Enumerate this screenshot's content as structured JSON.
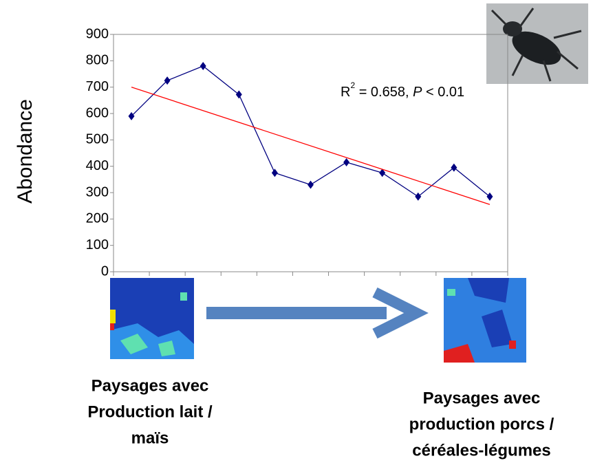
{
  "chart_data": {
    "type": "line",
    "y_label": "Abondance",
    "categories": [
      null,
      null,
      null,
      null,
      null,
      null,
      null,
      null,
      null,
      null,
      null
    ],
    "series": [
      {
        "color": "#000080",
        "values": [
          590,
          725,
          780,
          672,
          375,
          330,
          415,
          375,
          285,
          395,
          285
        ],
        "marker": "diamond"
      },
      {
        "color": "#ff0000",
        "values": [
          700,
          655.5,
          611,
          566.5,
          522,
          477.5,
          433,
          388.5,
          344,
          299.5,
          255
        ]
      }
    ],
    "ylim": [
      0,
      900
    ],
    "yticks": [
      0,
      100,
      200,
      300,
      400,
      500,
      600,
      700,
      800,
      900
    ],
    "annotation": {
      "r": "R",
      "sup": "2",
      "eq": " = 0.658, ",
      "p": "P",
      "rest": " < 0.01"
    },
    "left_caption": [
      "Paysages avec",
      "Production lait /",
      "maïs"
    ],
    "right_caption": [
      "Paysages avec",
      "production porcs /",
      "céréales-légumes"
    ]
  }
}
